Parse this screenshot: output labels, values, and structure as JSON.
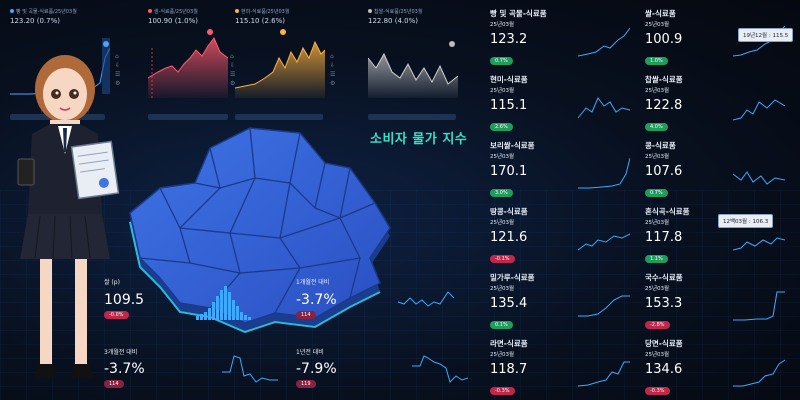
{
  "title": "소비자 물가 지수",
  "top_charts": [
    {
      "head": "빵 및 곡물-식료품/25년03월",
      "value": "123.20 (0.7%)",
      "dot": "#4aa3ff"
    },
    {
      "head": "쌀-식료품/25년03월",
      "value": "100.90 (1.0%)",
      "dot": "#ff5a6e"
    },
    {
      "head": "현미-식료품/25년03월",
      "value": "115.10 (2.6%)",
      "dot": "#ffb340"
    },
    {
      "head": "찹쌀-식료품/25년03월",
      "value": "122.80 (4.0%)",
      "dot": "#bdbdbd"
    }
  ],
  "items": [
    {
      "name": "빵 및 곡물-식료품",
      "date": "25년03월",
      "value": "123.2",
      "badge": "0.7%",
      "trend": "up"
    },
    {
      "name": "쌀-식료품",
      "date": "25년03월",
      "value": "100.9",
      "badge": "1.0%",
      "trend": "up"
    },
    {
      "name": "현미-식료품",
      "date": "25년03월",
      "value": "115.1",
      "badge": "2.6%",
      "trend": "up"
    },
    {
      "name": "찹쌀-식료품",
      "date": "25년03월",
      "value": "122.8",
      "badge": "4.0%",
      "trend": "up"
    },
    {
      "name": "보리쌀-식료품",
      "date": "25년03월",
      "value": "170.1",
      "badge": "3.0%",
      "trend": "up"
    },
    {
      "name": "콩-식료품",
      "date": "25년03월",
      "value": "107.6",
      "badge": "0.7%",
      "trend": "up"
    },
    {
      "name": "땅콩-식료품",
      "date": "25년03월",
      "value": "121.6",
      "badge": "-0.1%",
      "trend": "down"
    },
    {
      "name": "혼식곡-식료품",
      "date": "25년03월",
      "value": "117.8",
      "badge": "1.1%",
      "trend": "up"
    },
    {
      "name": "밀가루-식료품",
      "date": "25년03월",
      "value": "135.4",
      "badge": "0.1%",
      "trend": "up"
    },
    {
      "name": "국수-식료품",
      "date": "25년03월",
      "value": "153.3",
      "badge": "-2.8%",
      "trend": "down"
    },
    {
      "name": "라면-식료품",
      "date": "25년03월",
      "value": "118.7",
      "badge": "-0.3%",
      "trend": "down"
    },
    {
      "name": "당면-식료품",
      "date": "25년03월",
      "value": "134.6",
      "badge": "-0.3%",
      "trend": "down"
    }
  ],
  "tooltips": [
    {
      "text": "19년12월 : 115.5"
    },
    {
      "text": "12백03월 : 106.3"
    }
  ],
  "kpis": [
    {
      "label": "쌀 (p)",
      "value": "109.5",
      "badge": "-0.0%"
    },
    {
      "label": "1개월전 대비",
      "value": "-3.7%",
      "badge": "114"
    },
    {
      "label": "3개월전 대비",
      "value": "-3.7%",
      "badge": "114"
    },
    {
      "label": "1년전 대비",
      "value": "-7.9%",
      "badge": "119"
    }
  ],
  "colors": {
    "accent": "#38e0c8",
    "spark": "#3fa9ff",
    "up": "#1f9d5c",
    "down": "#c2264a"
  }
}
